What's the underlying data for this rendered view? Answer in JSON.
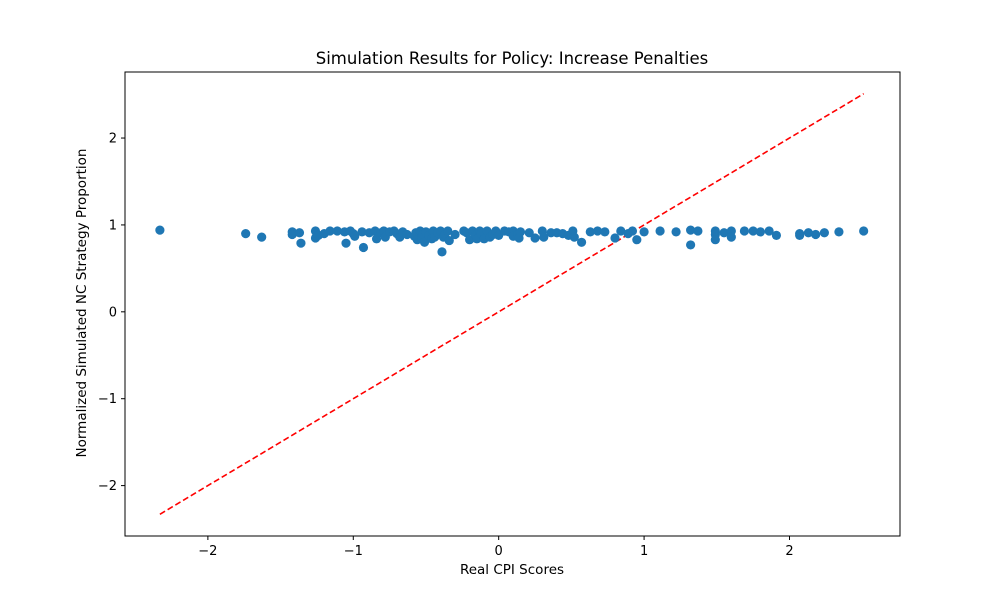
{
  "chart_data": {
    "type": "scatter",
    "title": "Simulation Results for Policy: Increase Penalties",
    "xlabel": "Real CPI Scores",
    "ylabel": "Normalized Simulated NC Strategy Proportion",
    "xlim": [
      -2.57,
      2.76
    ],
    "ylim": [
      -2.58,
      2.76
    ],
    "xticks": [
      -2,
      -1,
      0,
      1,
      2
    ],
    "xtick_labels": [
      "−2",
      "−1",
      "0",
      "1",
      "2"
    ],
    "yticks": [
      -2,
      -1,
      0,
      1,
      2
    ],
    "ytick_labels": [
      "−2",
      "−1",
      "0",
      "1",
      "2"
    ],
    "grid": false,
    "legend": "none",
    "series": [
      {
        "marker_color": "#1f77b4",
        "points": [
          [
            -2.33,
            0.94
          ],
          [
            -1.74,
            0.9
          ],
          [
            -1.63,
            0.86
          ],
          [
            -1.42,
            0.92
          ],
          [
            -1.42,
            0.89
          ],
          [
            -1.37,
            0.91
          ],
          [
            -1.36,
            0.79
          ],
          [
            -1.26,
            0.93
          ],
          [
            -1.26,
            0.85
          ],
          [
            -1.24,
            0.88
          ],
          [
            -1.2,
            0.9
          ],
          [
            -1.16,
            0.93
          ],
          [
            -1.11,
            0.93
          ],
          [
            -1.06,
            0.92
          ],
          [
            -1.05,
            0.79
          ],
          [
            -1.02,
            0.93
          ],
          [
            -1.0,
            0.9
          ],
          [
            -0.99,
            0.87
          ],
          [
            -0.94,
            0.92
          ],
          [
            -0.93,
            0.74
          ],
          [
            -0.89,
            0.91
          ],
          [
            -0.85,
            0.93
          ],
          [
            -0.84,
            0.84
          ],
          [
            -0.81,
            0.91
          ],
          [
            -0.79,
            0.93
          ],
          [
            -0.78,
            0.86
          ],
          [
            -0.75,
            0.92
          ],
          [
            -0.72,
            0.93
          ],
          [
            -0.7,
            0.9
          ],
          [
            -0.68,
            0.86
          ],
          [
            -0.66,
            0.92
          ],
          [
            -0.63,
            0.89
          ],
          [
            -0.58,
            0.87
          ],
          [
            -0.57,
            0.91
          ],
          [
            -0.56,
            0.83
          ],
          [
            -0.54,
            0.93
          ],
          [
            -0.53,
            0.85
          ],
          [
            -0.52,
            0.89
          ],
          [
            -0.51,
            0.8
          ],
          [
            -0.5,
            0.92
          ],
          [
            -0.48,
            0.88
          ],
          [
            -0.46,
            0.84
          ],
          [
            -0.45,
            0.93
          ],
          [
            -0.44,
            0.86
          ],
          [
            -0.42,
            0.91
          ],
          [
            -0.4,
            0.93
          ],
          [
            -0.39,
            0.69
          ],
          [
            -0.38,
            0.86
          ],
          [
            -0.37,
            0.89
          ],
          [
            -0.35,
            0.93
          ],
          [
            -0.34,
            0.82
          ],
          [
            -0.3,
            0.89
          ],
          [
            -0.24,
            0.93
          ],
          [
            -0.22,
            0.91
          ],
          [
            -0.2,
            0.83
          ],
          [
            -0.18,
            0.93
          ],
          [
            -0.16,
            0.88
          ],
          [
            -0.15,
            0.84
          ],
          [
            -0.13,
            0.93
          ],
          [
            -0.12,
            0.9
          ],
          [
            -0.1,
            0.84
          ],
          [
            -0.08,
            0.93
          ],
          [
            -0.06,
            0.86
          ],
          [
            -0.04,
            0.89
          ],
          [
            -0.02,
            0.93
          ],
          [
            0.0,
            0.88
          ],
          [
            0.04,
            0.93
          ],
          [
            0.07,
            0.92
          ],
          [
            0.1,
            0.93
          ],
          [
            0.1,
            0.87
          ],
          [
            0.13,
            0.89
          ],
          [
            0.14,
            0.85
          ],
          [
            0.15,
            0.92
          ],
          [
            0.21,
            0.91
          ],
          [
            0.25,
            0.85
          ],
          [
            0.3,
            0.93
          ],
          [
            0.31,
            0.86
          ],
          [
            0.36,
            0.91
          ],
          [
            0.4,
            0.91
          ],
          [
            0.44,
            0.9
          ],
          [
            0.48,
            0.88
          ],
          [
            0.51,
            0.93
          ],
          [
            0.52,
            0.86
          ],
          [
            0.57,
            0.8
          ],
          [
            0.63,
            0.92
          ],
          [
            0.68,
            0.93
          ],
          [
            0.73,
            0.92
          ],
          [
            0.8,
            0.85
          ],
          [
            0.84,
            0.93
          ],
          [
            0.89,
            0.9
          ],
          [
            0.92,
            0.93
          ],
          [
            0.95,
            0.83
          ],
          [
            1.0,
            0.92
          ],
          [
            1.11,
            0.93
          ],
          [
            1.22,
            0.92
          ],
          [
            1.32,
            0.94
          ],
          [
            1.32,
            0.77
          ],
          [
            1.37,
            0.93
          ],
          [
            1.49,
            0.93
          ],
          [
            1.49,
            0.89
          ],
          [
            1.49,
            0.83
          ],
          [
            1.55,
            0.91
          ],
          [
            1.6,
            0.93
          ],
          [
            1.6,
            0.86
          ],
          [
            1.69,
            0.93
          ],
          [
            1.75,
            0.93
          ],
          [
            1.8,
            0.92
          ],
          [
            1.86,
            0.93
          ],
          [
            1.91,
            0.88
          ],
          [
            2.07,
            0.9
          ],
          [
            2.07,
            0.88
          ],
          [
            2.13,
            0.91
          ],
          [
            2.18,
            0.89
          ],
          [
            2.24,
            0.91
          ],
          [
            2.34,
            0.92
          ],
          [
            2.51,
            0.93
          ]
        ]
      }
    ],
    "reference_line": {
      "style": "dashed",
      "color": "#ff0000",
      "from": [
        -2.33,
        -2.33
      ],
      "to": [
        2.51,
        2.51
      ]
    }
  }
}
